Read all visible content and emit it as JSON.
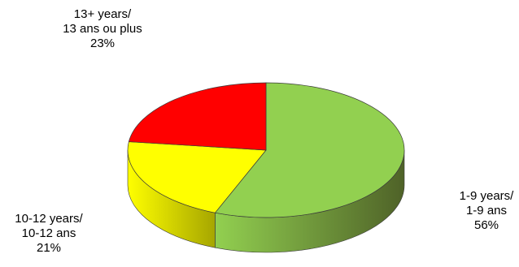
{
  "chart_data": {
    "type": "pie",
    "style": "3d",
    "slices": [
      {
        "label_lines": [
          "1-9 years/",
          "1-9 ans",
          "56%"
        ],
        "value": 56,
        "color": "#92d050",
        "side_color": "#4f6228"
      },
      {
        "label_lines": [
          "10-12 years/",
          "10-12 ans",
          "21%"
        ],
        "value": 21,
        "color": "#ffff00",
        "side_color": "#a6a600"
      },
      {
        "label_lines": [
          "13+ years/",
          "13 ans ou plus",
          "23%"
        ],
        "value": 23,
        "color": "#ff0000",
        "side_color": "#990000"
      }
    ]
  }
}
